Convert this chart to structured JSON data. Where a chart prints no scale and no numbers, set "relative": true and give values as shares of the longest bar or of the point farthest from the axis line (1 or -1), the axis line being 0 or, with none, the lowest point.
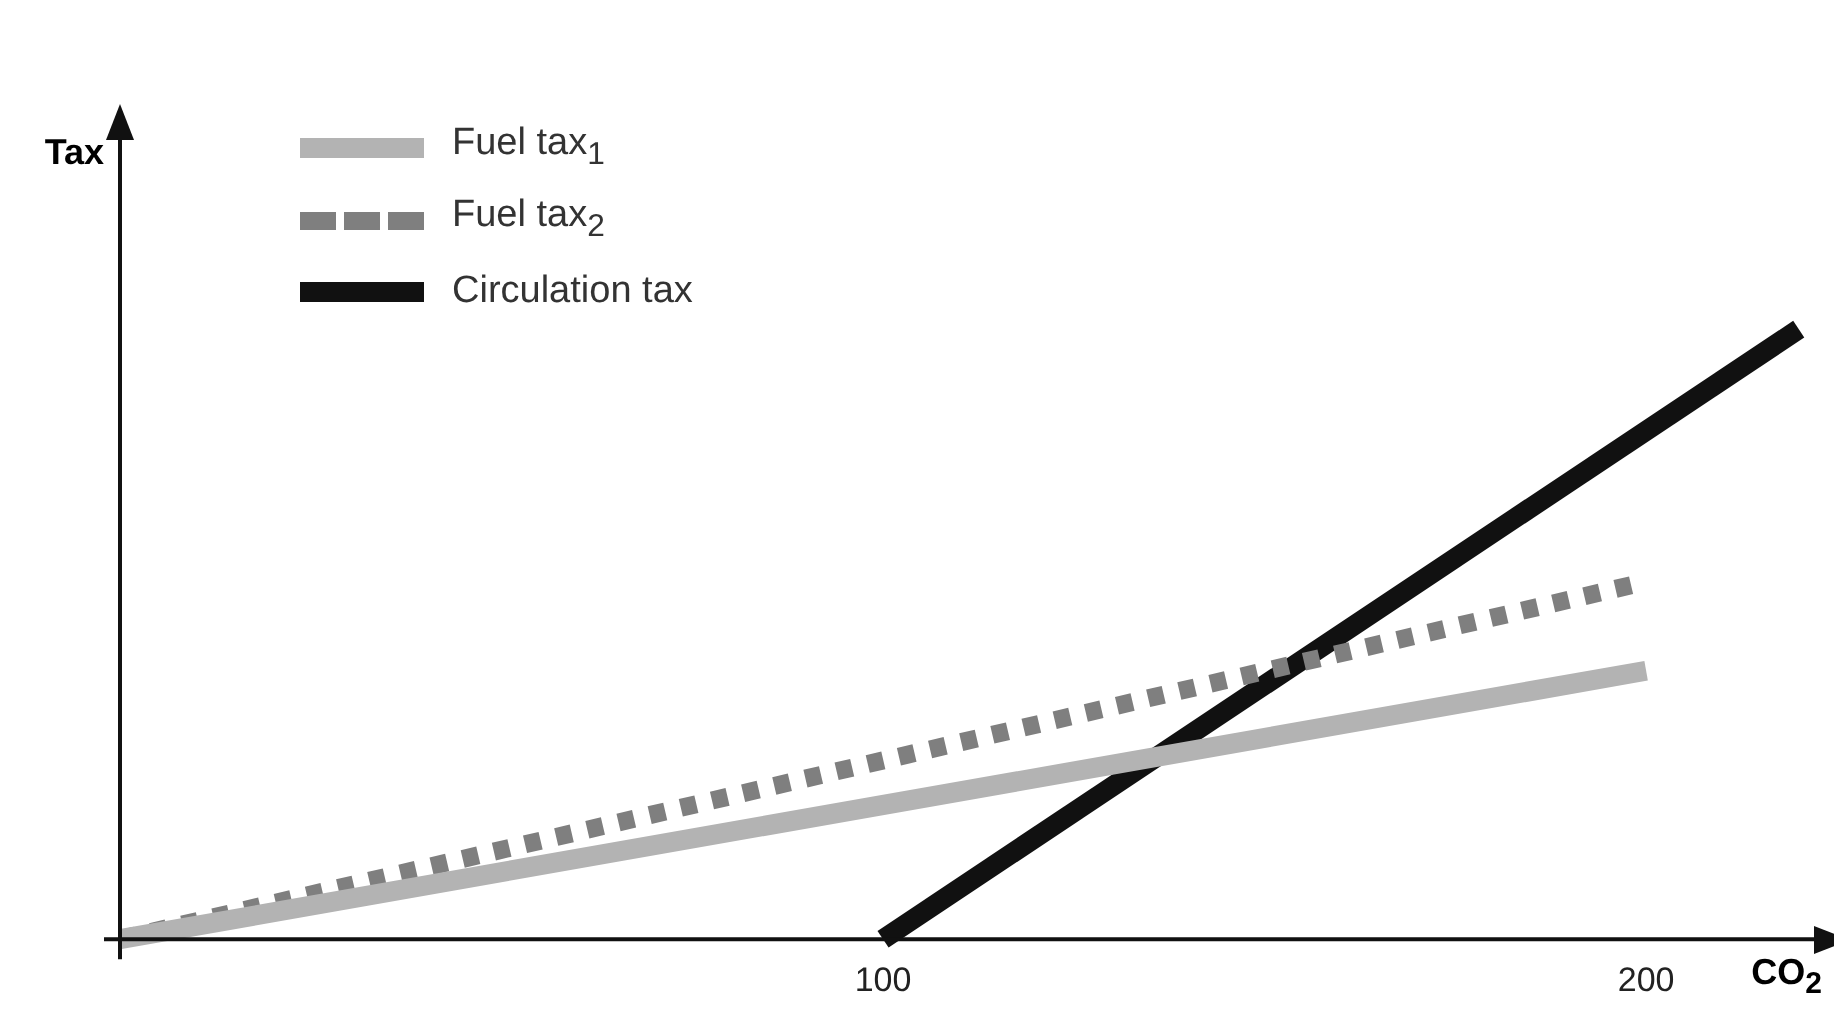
{
  "chart_data": {
    "type": "line",
    "relative": true,
    "xlabel": "CO$_{2}$",
    "ylabel": "Tax",
    "xlim": [
      0,
      222
    ],
    "xticks": [
      100,
      200
    ],
    "legend": "top left",
    "grid": false,
    "marker": "none",
    "series": [
      {
        "name": "Fuel tax$_{1}$",
        "color": "#b3b3b3",
        "line_style": "solid",
        "x": [
          0,
          200
        ],
        "values": [
          0,
          0.44
        ]
      },
      {
        "name": "Fuel tax$_{2}$",
        "color": "#7f7f7f",
        "line_style": "dotted",
        "x": [
          0,
          200
        ],
        "values": [
          0,
          0.586
        ]
      },
      {
        "name": "Circulation tax",
        "color": "#111111",
        "line_style": "solid",
        "x": [
          100,
          220
        ],
        "values": [
          0,
          1
        ]
      }
    ]
  }
}
